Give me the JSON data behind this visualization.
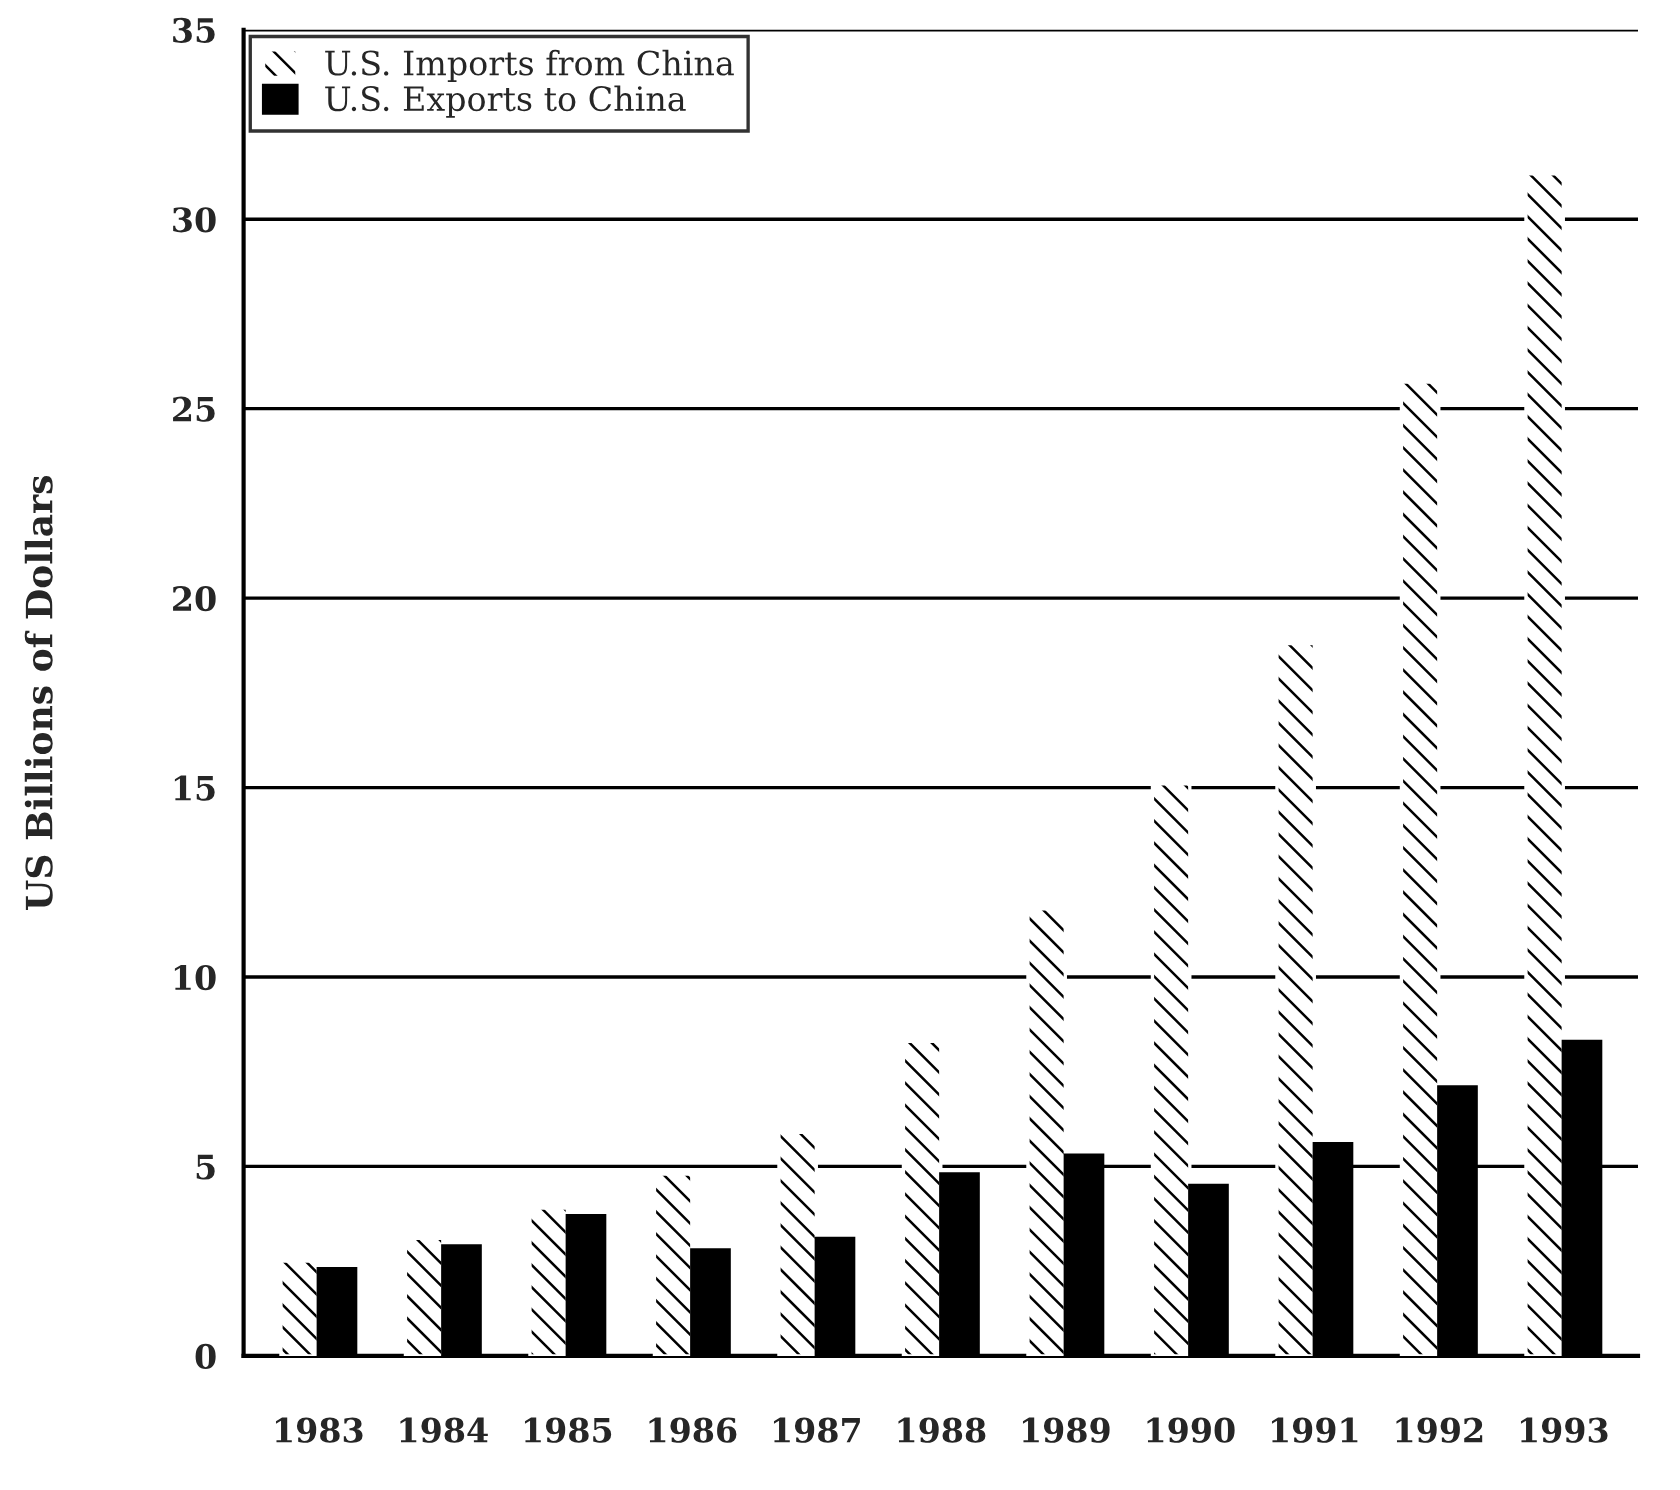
{
  "chart_data": {
    "type": "bar",
    "categories": [
      "1983",
      "1984",
      "1985",
      "1986",
      "1987",
      "1988",
      "1989",
      "1990",
      "1991",
      "1992",
      "1993"
    ],
    "series": [
      {
        "name": "U.S. Imports from China",
        "color": "#ffffff",
        "values": [
          2.5,
          3.1,
          3.9,
          4.8,
          5.9,
          8.3,
          11.8,
          15.1,
          18.8,
          25.7,
          31.2
        ]
      },
      {
        "name": "U.S. Exports to China",
        "color": "#000000",
        "values": [
          2.3,
          2.9,
          3.7,
          2.8,
          3.1,
          4.8,
          5.3,
          4.5,
          5.6,
          7.1,
          8.3
        ]
      }
    ],
    "ylabel": "US Billions of Dollars",
    "ylim": [
      0,
      35
    ],
    "yticks": [
      0,
      5,
      10,
      15,
      20,
      25,
      30,
      35
    ],
    "grid": "y",
    "legend": "top left"
  }
}
